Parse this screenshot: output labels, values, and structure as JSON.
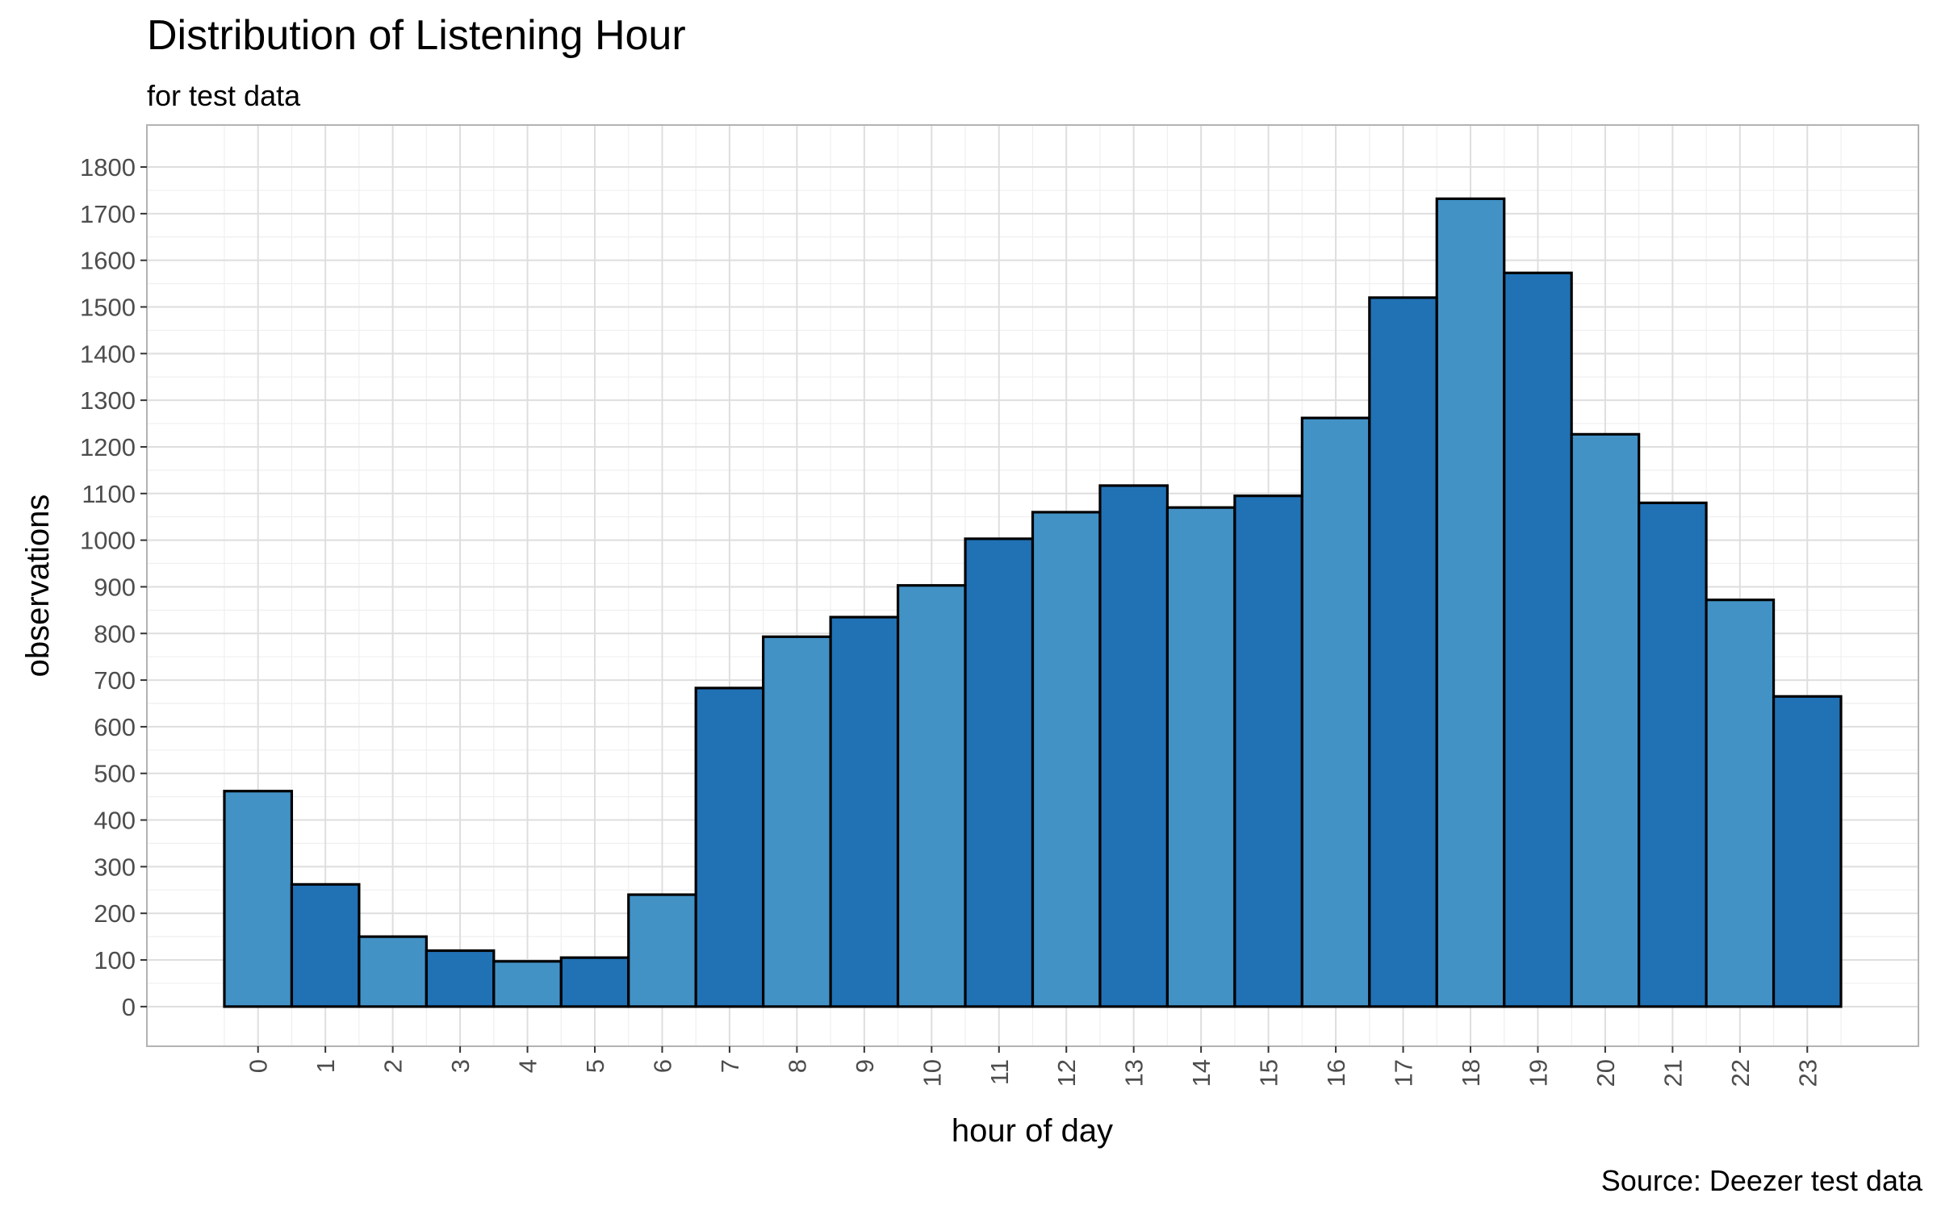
{
  "chart_data": {
    "type": "bar",
    "title": "Distribution of Listening Hour",
    "subtitle": "for test data",
    "caption": "Source: Deezer test data",
    "xlabel": "hour of day",
    "ylabel": "observations",
    "categories": [
      "0",
      "1",
      "2",
      "3",
      "4",
      "5",
      "6",
      "7",
      "8",
      "9",
      "10",
      "11",
      "12",
      "13",
      "14",
      "15",
      "16",
      "17",
      "18",
      "19",
      "20",
      "21",
      "22",
      "23"
    ],
    "values": [
      462,
      262,
      150,
      120,
      97,
      105,
      240,
      683,
      793,
      835,
      903,
      1003,
      1060,
      1117,
      1070,
      1095,
      1262,
      1520,
      1732,
      1573,
      1227,
      1080,
      872,
      665
    ],
    "y_ticks": [
      "0",
      "100",
      "200",
      "300",
      "400",
      "500",
      "600",
      "700",
      "800",
      "900",
      "1000",
      "1100",
      "1200",
      "1300",
      "1400",
      "1500",
      "1600",
      "1700",
      "1800"
    ],
    "ylim": [
      -85,
      1890
    ],
    "grid": true,
    "legend": "none",
    "colors": {
      "bar_light": "#4292c6",
      "bar_dark": "#2171b5",
      "bar_outline": "#000000",
      "panel_border": "#b3b3b3",
      "grid_major": "#dedede",
      "grid_minor": "#efefef"
    }
  }
}
